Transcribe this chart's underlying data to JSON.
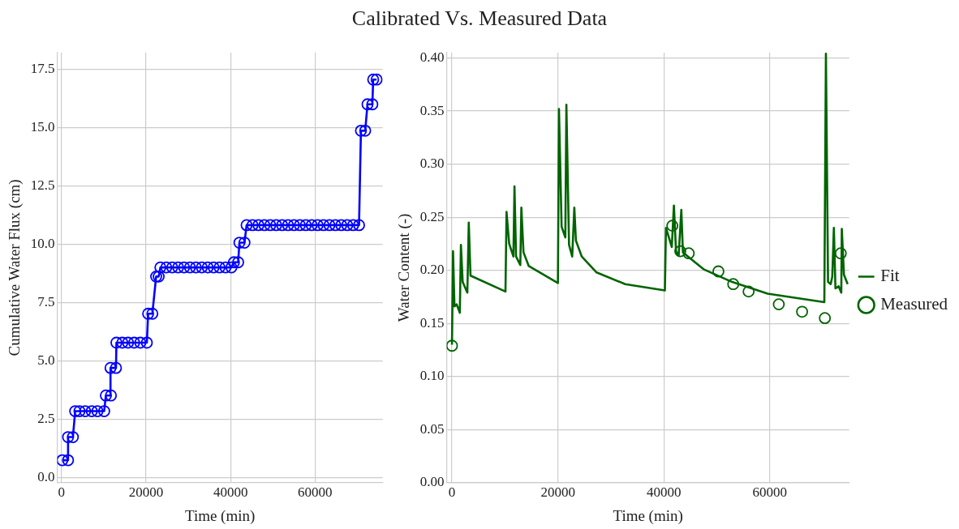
{
  "chart_data": [
    {
      "type": "other",
      "title": "Calibrated Vs. Measured Data"
    },
    {
      "type": "line",
      "xlabel": "Time (min)",
      "ylabel": "Cumulative Water Flux (cm)",
      "xlim": [
        -1000,
        76000
      ],
      "xticks": [
        0,
        20000,
        40000,
        60000
      ],
      "ylim": [
        -0.2,
        18.2
      ],
      "yticks": [
        {
          "value": 0,
          "label": "0.0"
        },
        {
          "value": 2.5,
          "label": "2.5"
        },
        {
          "value": 5,
          "label": "5.0"
        },
        {
          "value": 7.5,
          "label": "7.5"
        },
        {
          "value": 10,
          "label": "10.0"
        },
        {
          "value": 12.5,
          "label": "12.5"
        },
        {
          "value": 15,
          "label": "15.0"
        },
        {
          "value": 17.5,
          "label": "17.5"
        }
      ],
      "grid": true,
      "legend": false,
      "marker": "circle",
      "line_style": "solid",
      "series": [
        {
          "color": "#0000ff",
          "x": [
            200,
            1560,
            1560,
            2700,
            3250,
            4260,
            5600,
            7170,
            8500,
            10100,
            10500,
            11700,
            11600,
            12900,
            13000,
            14400,
            15750,
            17200,
            18650,
            20200,
            20500,
            21500,
            22400,
            23000,
            23400,
            24800,
            26200,
            27600,
            29000,
            30400,
            31800,
            33200,
            34600,
            36000,
            37400,
            38800,
            40200,
            40800,
            41800,
            42100,
            43300,
            43800,
            45200,
            46600,
            48000,
            49400,
            50800,
            52200,
            53600,
            55000,
            56400,
            57800,
            59200,
            60600,
            62000,
            63400,
            64800,
            66200,
            67600,
            69000,
            70400,
            70850,
            71860,
            72400,
            73550,
            73750,
            74560
          ],
          "values": [
            0.76,
            0.76,
            1.75,
            1.75,
            2.86,
            2.86,
            2.86,
            2.86,
            2.86,
            2.86,
            3.53,
            3.53,
            4.71,
            4.71,
            5.79,
            5.79,
            5.79,
            5.79,
            5.79,
            5.79,
            7.03,
            7.03,
            8.62,
            8.62,
            9.01,
            9.01,
            9.01,
            9.01,
            9.01,
            9.01,
            9.01,
            9.01,
            9.01,
            9.01,
            9.01,
            9.01,
            9.01,
            9.23,
            9.23,
            10.07,
            10.07,
            10.82,
            10.82,
            10.82,
            10.82,
            10.82,
            10.82,
            10.82,
            10.82,
            10.82,
            10.82,
            10.82,
            10.82,
            10.82,
            10.82,
            10.82,
            10.82,
            10.82,
            10.82,
            10.82,
            10.82,
            14.86,
            14.86,
            15.99,
            15.99,
            17.05,
            17.05
          ]
        }
      ]
    },
    {
      "type": "line",
      "xlabel": "Time (min)",
      "ylabel": "Water Content (-)",
      "xlim": [
        -1000,
        75000
      ],
      "xticks": [
        0,
        20000,
        40000,
        60000
      ],
      "ylim": [
        0,
        0.405
      ],
      "yticks": [
        {
          "value": 0,
          "label": "0.00"
        },
        {
          "value": 0.05,
          "label": "0.05"
        },
        {
          "value": 0.1,
          "label": "0.10"
        },
        {
          "value": 0.15,
          "label": "0.15"
        },
        {
          "value": 0.2,
          "label": "0.20"
        },
        {
          "value": 0.25,
          "label": "0.25"
        },
        {
          "value": 0.3,
          "label": "0.30"
        },
        {
          "value": 0.35,
          "label": "0.35"
        },
        {
          "value": 0.4,
          "label": "0.40"
        }
      ],
      "grid": true,
      "legend": "right",
      "series": [
        {
          "name": "Fit",
          "type": "line",
          "marker": "none",
          "line_style": "solid",
          "color": "#006400",
          "x": [
            0,
            200,
            470,
            880,
            1480,
            1690,
            2020,
            2900,
            3170,
            3500,
            10100,
            10300,
            10800,
            11600,
            11800,
            12100,
            12900,
            13100,
            13500,
            14500,
            20000,
            20200,
            20700,
            21400,
            21600,
            22100,
            22700,
            23100,
            23400,
            24500,
            27300,
            32700,
            40200,
            40400,
            41500,
            41900,
            42300,
            42800,
            43300,
            43600,
            44800,
            47500,
            52900,
            59600,
            70300,
            70600,
            71000,
            71500,
            71800,
            72100,
            72400,
            73000,
            73500,
            73600,
            74000,
            74700
          ],
          "values": [
            0.13,
            0.218,
            0.166,
            0.168,
            0.16,
            0.224,
            0.189,
            0.179,
            0.245,
            0.195,
            0.18,
            0.255,
            0.225,
            0.213,
            0.279,
            0.213,
            0.205,
            0.259,
            0.217,
            0.204,
            0.188,
            0.352,
            0.241,
            0.231,
            0.356,
            0.224,
            0.213,
            0.259,
            0.228,
            0.213,
            0.198,
            0.187,
            0.181,
            0.24,
            0.222,
            0.261,
            0.218,
            0.214,
            0.257,
            0.217,
            0.212,
            0.201,
            0.189,
            0.178,
            0.17,
            0.404,
            0.189,
            0.187,
            0.194,
            0.24,
            0.183,
            0.185,
            0.179,
            0.239,
            0.196,
            0.187
          ]
        },
        {
          "name": "Measured",
          "type": "scatter",
          "marker": "circle",
          "color": "#006400",
          "x": [
            0,
            41600,
            43100,
            44700,
            50300,
            53100,
            56000,
            61700,
            66100,
            70400,
            73400
          ],
          "values": [
            0.129,
            0.242,
            0.218,
            0.216,
            0.199,
            0.187,
            0.18,
            0.168,
            0.161,
            0.155,
            0.216
          ]
        }
      ]
    }
  ]
}
